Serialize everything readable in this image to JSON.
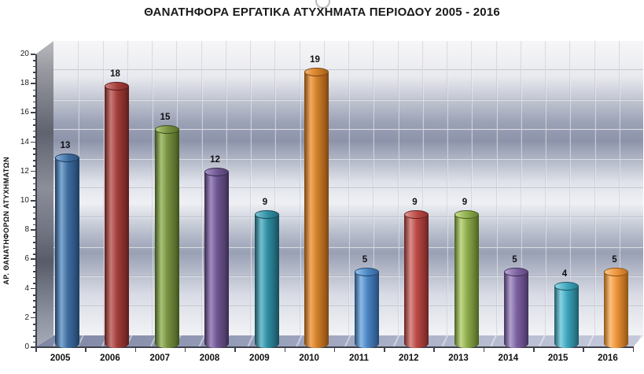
{
  "title": "ΘΑΝΑΤΗΦΟΡΑ ΕΡΓΑΤΙΚΑ ΑΤΥΧΗΜΑΤΑ ΠΕΡΙΟΔΟΥ 2005 - 2016",
  "chart_data": {
    "type": "bar",
    "subtype": "3d-cylinder",
    "title": "ΘΑΝΑΤΗΦΟΡΑ ΕΡΓΑΤΙΚΑ ΑΤΥΧΗΜΑΤΑ ΠΕΡΙΟΔΟΥ 2005 - 2016",
    "categories": [
      "2005",
      "2006",
      "2007",
      "2008",
      "2009",
      "2010",
      "2011",
      "2012",
      "2013",
      "2014",
      "2015",
      "2016"
    ],
    "values": [
      13,
      18,
      15,
      12,
      9,
      19,
      5,
      9,
      9,
      5,
      4,
      5
    ],
    "data_labels_shown": true,
    "xlabel": "",
    "ylabel": "ΑΡ. ΘΑΝΑΤΗΦΟΡΩΝ ΑΤΥΧΗΜΑΤΩΝ",
    "ylim": [
      0,
      20
    ],
    "ytick_step": 2,
    "yticks": [
      0,
      2,
      4,
      6,
      8,
      10,
      12,
      14,
      16,
      18,
      20
    ],
    "grid": true,
    "legend": false,
    "vary_colors_by_point": true,
    "bar_colors": [
      {
        "name": "blue",
        "dark": "#1f3b5c",
        "light": "#7ea9d4",
        "base": "#3e6c9e",
        "shade": "#2c5380"
      },
      {
        "name": "red",
        "dark": "#5a1d1b",
        "light": "#c97a76",
        "base": "#a03c39",
        "shade": "#7e2b29"
      },
      {
        "name": "green",
        "dark": "#3c4f1c",
        "light": "#a9c476",
        "base": "#768f41",
        "shade": "#5a702c"
      },
      {
        "name": "purple",
        "dark": "#382a4d",
        "light": "#a18cc0",
        "base": "#6d5590",
        "shade": "#53406f"
      },
      {
        "name": "teal",
        "dark": "#174b57",
        "light": "#74c0d0",
        "base": "#2f8da1",
        "shade": "#22687a"
      },
      {
        "name": "orange",
        "dark": "#7c4512",
        "light": "#f2ab60",
        "base": "#d07e28",
        "shade": "#a35f1b"
      },
      {
        "name": "blue",
        "dark": "#23496f",
        "light": "#8ebbe8",
        "base": "#4a85c2",
        "shade": "#356399"
      },
      {
        "name": "red",
        "dark": "#662422",
        "light": "#db8f8b",
        "base": "#b94743",
        "shade": "#8f3330"
      },
      {
        "name": "green",
        "dark": "#4b6020",
        "light": "#c2d98a",
        "base": "#8cab4b",
        "shade": "#688033"
      },
      {
        "name": "purple",
        "dark": "#41315b",
        "light": "#b2a0cd",
        "base": "#7b619f",
        "shade": "#5c477c"
      },
      {
        "name": "teal",
        "dark": "#1d5a68",
        "light": "#8ad2e2",
        "base": "#3da5bd",
        "shade": "#2b7b8e"
      },
      {
        "name": "orange",
        "dark": "#8e5514",
        "light": "#fbc181",
        "base": "#ec9338",
        "shade": "#b76f22"
      }
    ]
  },
  "colors": {
    "axis_line": "#3f424c",
    "text": "#111111",
    "back_wall_dark_band": "#8d94aa",
    "back_wall_light": "#f2f3f6",
    "left_wall": "#5f636f",
    "floor": "#9aa1bb",
    "background": "#ffffff"
  }
}
